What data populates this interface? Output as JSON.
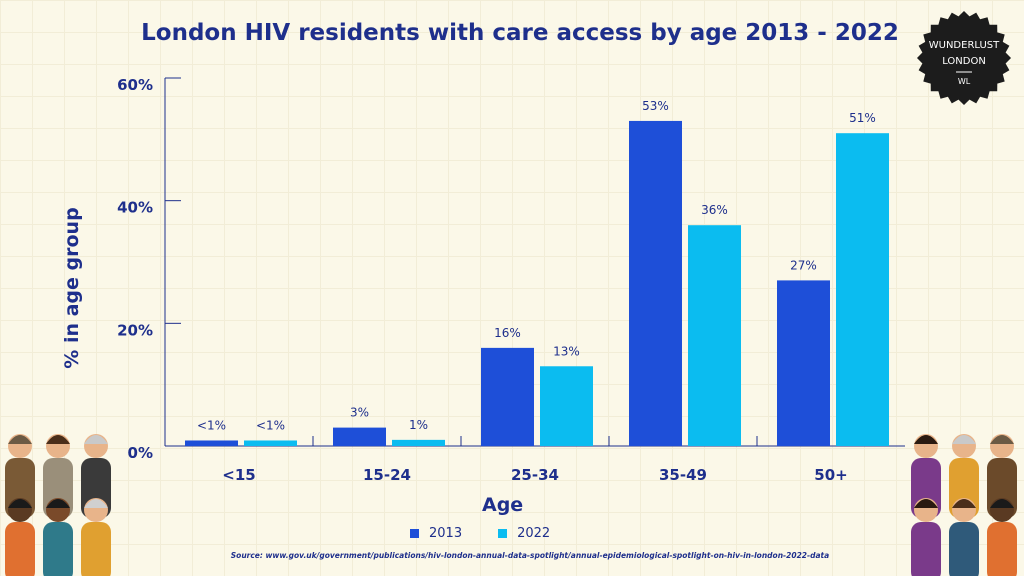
{
  "chart_data": {
    "type": "bar",
    "title": "London HIV residents with care access by age 2013 - 2022",
    "xlabel": "Age",
    "ylabel": "% in age group",
    "ylim": [
      0,
      60
    ],
    "yticks": [
      {
        "value": 0,
        "label": "0%"
      },
      {
        "value": 20,
        "label": "20%"
      },
      {
        "value": 40,
        "label": "40%"
      },
      {
        "value": 60,
        "label": "60%"
      }
    ],
    "categories": [
      "<15",
      "15-24",
      "25-34",
      "35-49",
      "50+"
    ],
    "series": [
      {
        "name": "2013",
        "color": "#1e4fd8",
        "values": [
          0.9,
          3,
          16,
          53,
          27
        ],
        "labels": [
          "<1%",
          "3%",
          "16%",
          "53%",
          "27%"
        ]
      },
      {
        "name": "2022",
        "color": "#0bbcf0",
        "values": [
          0.9,
          1,
          13,
          36,
          51
        ],
        "labels": [
          "<1%",
          "1%",
          "13%",
          "36%",
          "51%"
        ]
      }
    ],
    "grid": false,
    "legend": "bottom-center"
  },
  "badge": {
    "line1": "WUNDERLUST",
    "line2": "LONDON",
    "mark": "WL"
  },
  "source": "Source: www.gov.uk/government/publications/hiv-london-annual-data-spotlight/annual-epidemiological-spotlight-on-hiv-in-london-2022-data",
  "colors": {
    "text": "#1e2f8c",
    "background": "#fbf8e8"
  }
}
